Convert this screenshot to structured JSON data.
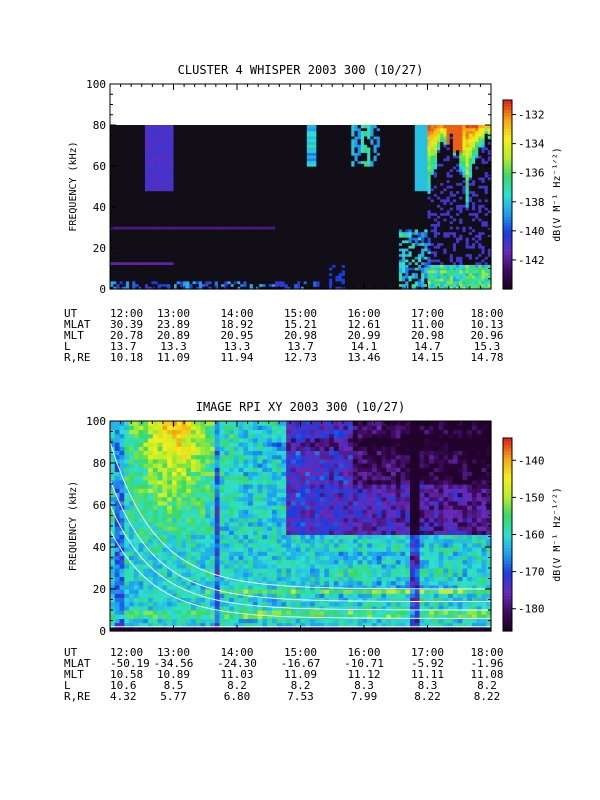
{
  "colors": {
    "background": "#ffffff",
    "axes": "#000000",
    "spectrogram_floor": "#120e18",
    "colormap": [
      "#1a001f",
      "#3d0a5c",
      "#6a2ab8",
      "#1b3de0",
      "#1fa0f0",
      "#2ee0d0",
      "#39d86a",
      "#b8ee2a",
      "#f5f01a",
      "#f5a014",
      "#e0201a"
    ]
  },
  "chart_data": [
    {
      "type": "heatmap",
      "title": "CLUSTER 4 WHISPER 2003 300 (10/27)",
      "xlabel": "",
      "ylabel": "FREQUENCY (kHz)",
      "x_ticks": [
        "12:00",
        "13:00",
        "14:00",
        "15:00",
        "16:00",
        "17:00",
        "18:00"
      ],
      "y_ticks": [
        "0",
        "20",
        "40",
        "60",
        "80",
        "100"
      ],
      "ylim": [
        0,
        100
      ],
      "data_ymax": 80,
      "colorbar": {
        "ticks": [
          "-132",
          "-134",
          "-136",
          "-138",
          "-140",
          "-142"
        ],
        "range": [
          -144,
          -131
        ],
        "label": "dB(V M⁻¹ Hz⁻¹ᐟ²)"
      },
      "ephemeris": [
        {
          "label": "UT",
          "values": [
            "12:00",
            "13:00",
            "14:00",
            "15:00",
            "16:00",
            "17:00",
            "18:00"
          ]
        },
        {
          "label": "MLAT",
          "values": [
            "30.39",
            "23.89",
            "18.92",
            "15.21",
            "12.61",
            "11.00",
            "10.13"
          ]
        },
        {
          "label": "MLT",
          "values": [
            "20.78",
            "20.89",
            "20.95",
            "20.98",
            "20.99",
            "20.98",
            "20.96"
          ]
        },
        {
          "label": "L",
          "values": [
            "13.7",
            "13.3",
            "13.3",
            "13.7",
            "14.1",
            "14.7",
            "15.3"
          ]
        },
        {
          "label": "R,RE",
          "values": [
            "10.18",
            "11.09",
            "11.94",
            "12.73",
            "13.46",
            "14.15",
            "14.78"
          ]
        }
      ]
    },
    {
      "type": "heatmap",
      "title": "IMAGE RPI XY 2003 300 (10/27)",
      "xlabel": "",
      "ylabel": "FREQUENCY (kHz)",
      "x_ticks": [
        "12:00",
        "13:00",
        "14:00",
        "15:00",
        "16:00",
        "17:00",
        "18:00"
      ],
      "y_ticks": [
        "0",
        "20",
        "40",
        "60",
        "80",
        "100"
      ],
      "ylim": [
        0,
        100
      ],
      "colorbar": {
        "ticks": [
          "-140",
          "-150",
          "-160",
          "-170",
          "-180"
        ],
        "range": [
          -186,
          -134
        ],
        "label": "dB(V M⁻¹ Hz⁻¹ᐟ²)"
      },
      "ephemeris": [
        {
          "label": "UT",
          "values": [
            "12:00",
            "13:00",
            "14:00",
            "15:00",
            "16:00",
            "17:00",
            "18:00"
          ]
        },
        {
          "label": "MLAT",
          "values": [
            "-50.19",
            "-34.56",
            "-24.30",
            "-16.67",
            "-10.71",
            "-5.92",
            "-1.96"
          ]
        },
        {
          "label": "MLT",
          "values": [
            "10.58",
            "10.89",
            "11.03",
            "11.09",
            "11.12",
            "11.11",
            "11.08"
          ]
        },
        {
          "label": "L",
          "values": [
            "10.6",
            "8.5",
            "8.2",
            "8.2",
            "8.3",
            "8.3",
            "8.2"
          ]
        },
        {
          "label": "R,RE",
          "values": [
            "4.32",
            "5.77",
            "6.80",
            "7.53",
            "7.99",
            "8.22",
            "8.22"
          ]
        }
      ]
    }
  ]
}
